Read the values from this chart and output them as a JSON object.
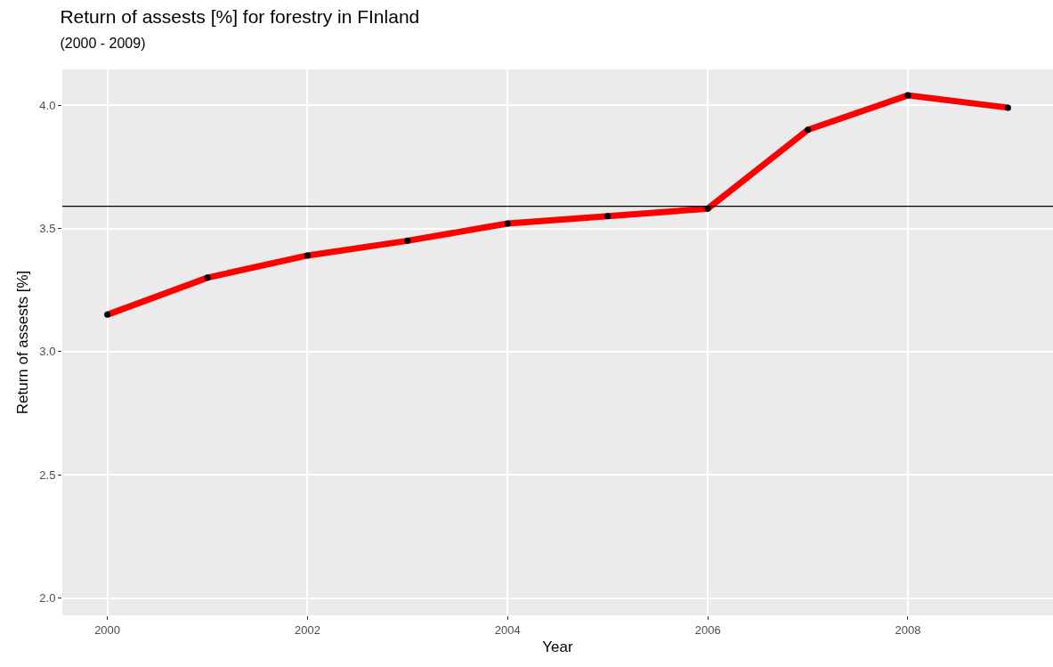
{
  "chart_data": {
    "type": "line",
    "title": "Return of assests [%] for forestry in FInland",
    "subtitle": "(2000 - 2009)",
    "xlabel": "Year",
    "ylabel": "Return of assests [%]",
    "x": [
      2000,
      2001,
      2002,
      2003,
      2004,
      2005,
      2006,
      2007,
      2008,
      2009
    ],
    "series": [
      {
        "color": "#ff0000",
        "values": [
          3.15,
          3.3,
          3.39,
          3.45,
          3.52,
          3.55,
          3.58,
          3.9,
          4.04,
          3.99
        ]
      }
    ],
    "xlim": [
      1999.55,
      2009.45
    ],
    "xticks": [
      2000,
      2002,
      2004,
      2006,
      2008
    ],
    "ylim": [
      1.93,
      4.145
    ],
    "yticks": [
      {
        "value": 2,
        "label": "2.0"
      },
      {
        "value": 2.5,
        "label": "2.5"
      },
      {
        "value": 3,
        "label": "3.0"
      },
      {
        "value": 3.5,
        "label": "3.5"
      },
      {
        "value": 4,
        "label": "4.0"
      }
    ],
    "ref_lines": [
      {
        "axis": "y",
        "value": 3.59,
        "color": "#000000"
      }
    ],
    "grid": true,
    "marker": "circle",
    "line_style": "solid"
  }
}
